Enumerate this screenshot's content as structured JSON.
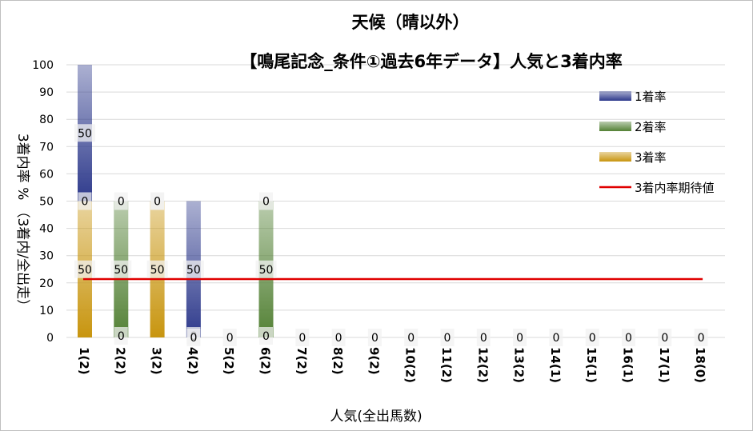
{
  "chart_data": {
    "type": "bar",
    "title": "天候（晴以外）",
    "subtitle": "【鳴尾記念_条件①過去6年データ】人気と3着内率",
    "xlabel": "人気(全出馬数)",
    "ylabel": "3着内率 % （3着内/全出走）",
    "ylim": [
      0,
      100
    ],
    "y_ticks": [
      "0",
      "10",
      "20",
      "30",
      "40",
      "50",
      "60",
      "70",
      "80",
      "90",
      "100"
    ],
    "categories": [
      "1(2)",
      "2(2)",
      "3(2)",
      "4(2)",
      "5(2)",
      "6(2)",
      "7(2)",
      "8(2)",
      "9(2)",
      "10(2)",
      "11(2)",
      "12(2)",
      "13(2)",
      "14(1)",
      "15(1)",
      "16(1)",
      "17(1)",
      "18(0)"
    ],
    "series": [
      {
        "name": "3着率",
        "color": "#c8950f",
        "values": [
          50,
          0,
          50,
          0,
          0,
          0,
          0,
          0,
          0,
          0,
          0,
          0,
          0,
          0,
          0,
          0,
          0,
          0
        ]
      },
      {
        "name": "2着率",
        "color": "#538135",
        "values": [
          0,
          50,
          0,
          0,
          0,
          50,
          0,
          0,
          0,
          0,
          0,
          0,
          0,
          0,
          0,
          0,
          0,
          0
        ]
      },
      {
        "name": "1着率",
        "color": "#2e3a8c",
        "values": [
          50,
          0,
          0,
          50,
          0,
          0,
          0,
          0,
          0,
          0,
          0,
          0,
          0,
          0,
          0,
          0,
          0,
          0
        ]
      }
    ],
    "data_labels": [
      [
        "50",
        "0",
        "50"
      ],
      [
        "0",
        "50",
        "0"
      ],
      [
        "50",
        "0",
        "0"
      ],
      [
        "0",
        "0",
        "50"
      ],
      [
        "0"
      ],
      [
        "0",
        "50",
        "0"
      ],
      [
        "0"
      ],
      [
        "0"
      ],
      [
        "0"
      ],
      [
        "0"
      ],
      [
        "0"
      ],
      [
        "0"
      ],
      [
        "0"
      ],
      [
        "0"
      ],
      [
        "0"
      ],
      [
        "0"
      ],
      [
        "0"
      ],
      [
        "0"
      ]
    ],
    "reference_line": {
      "name": "3着内率期待値",
      "value": 21.4,
      "color": "#e00000"
    },
    "legend": {
      "position": "right",
      "items": [
        {
          "label": "1着率",
          "color": "#2e3a8c"
        },
        {
          "label": "2着率",
          "color": "#538135"
        },
        {
          "label": "3着率",
          "color": "#c8950f"
        },
        {
          "label": "3着内率期待値",
          "color": "#e00000"
        }
      ]
    },
    "grid": true
  }
}
